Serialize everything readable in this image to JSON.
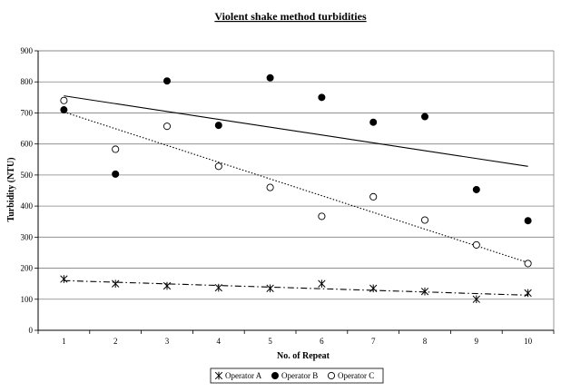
{
  "chart_data": {
    "type": "scatter",
    "title": "Violent shake method turbidities",
    "xlabel": "No. of Repeat",
    "ylabel": "Turbidity (NTU)",
    "xlim": [
      1,
      10
    ],
    "ylim": [
      0,
      900
    ],
    "x_ticks": [
      1,
      2,
      3,
      4,
      5,
      6,
      7,
      8,
      9,
      10
    ],
    "y_ticks": [
      0,
      100,
      200,
      300,
      400,
      500,
      600,
      700,
      800,
      900
    ],
    "grid": "horizontal",
    "legend_position": "bottom",
    "x": [
      1,
      2,
      3,
      4,
      5,
      6,
      7,
      8,
      9,
      10
    ],
    "series": [
      {
        "name": "Operator A",
        "marker": "asterisk",
        "values": [
          165,
          150,
          143,
          137,
          135,
          150,
          135,
          125,
          100,
          120
        ],
        "trendline": {
          "style": "dash-dot",
          "from": [
            1,
            160
          ],
          "to": [
            10,
            113
          ]
        }
      },
      {
        "name": "Operator B",
        "marker": "filled-circle",
        "values": [
          710,
          503,
          803,
          660,
          813,
          750,
          670,
          688,
          453,
          353
        ],
        "trendline": {
          "style": "solid",
          "from": [
            1,
            755
          ],
          "to": [
            10,
            528
          ]
        }
      },
      {
        "name": "Operator C",
        "marker": "open-circle",
        "values": [
          740,
          583,
          657,
          528,
          460,
          367,
          430,
          355,
          275,
          215
        ],
        "trendline": {
          "style": "dotted",
          "from": [
            1,
            703
          ],
          "to": [
            10,
            218
          ]
        }
      }
    ]
  }
}
